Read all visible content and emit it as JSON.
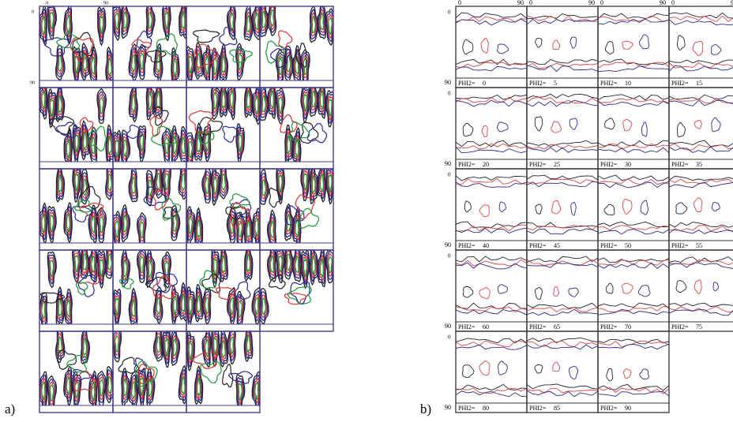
{
  "panel_a": {
    "label": "a)",
    "axis_top": [
      "0",
      "90"
    ],
    "axis_left": [
      "0",
      "90"
    ]
  },
  "panel_b": {
    "label": "b)",
    "axis_top": [
      "0",
      "90"
    ],
    "axis_left": [
      "0",
      "90"
    ],
    "section_prefix": "PHI2=",
    "sections": [
      "0",
      "5",
      "10",
      "15",
      "20",
      "25",
      "30",
      "35",
      "40",
      "45",
      "50",
      "55",
      "60",
      "65",
      "70",
      "75",
      "80",
      "85",
      "90"
    ]
  }
}
